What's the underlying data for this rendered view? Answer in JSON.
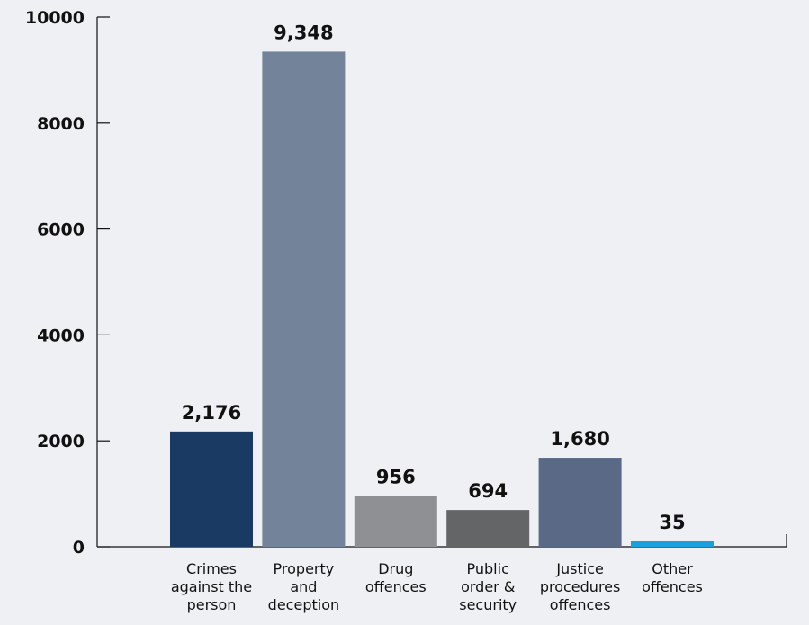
{
  "chart_data": {
    "type": "bar",
    "title": "",
    "xlabel": "",
    "ylabel": "",
    "ylim": [
      0,
      10000
    ],
    "yticks": [
      "0",
      "2000",
      "4000",
      "6000",
      "8000",
      "10000"
    ],
    "grid": false,
    "categories": [
      [
        "Crimes",
        "against the",
        "person"
      ],
      [
        "Property",
        "and",
        "deception"
      ],
      [
        "Drug",
        "offences"
      ],
      [
        "Public",
        "order &",
        "security"
      ],
      [
        "Justice",
        "procedures",
        "offences"
      ],
      [
        "Other",
        "offences"
      ]
    ],
    "values": [
      2176,
      9348,
      956,
      694,
      1680,
      35
    ],
    "value_labels": [
      "2,176",
      "9,348",
      "956",
      "694",
      "1,680",
      "35"
    ],
    "colors": [
      "#1b3a63",
      "#73839a",
      "#8e9093",
      "#646566",
      "#5a6986",
      "#1aa0dc"
    ],
    "axis_color": "#111111",
    "background": "#eef0f4"
  }
}
